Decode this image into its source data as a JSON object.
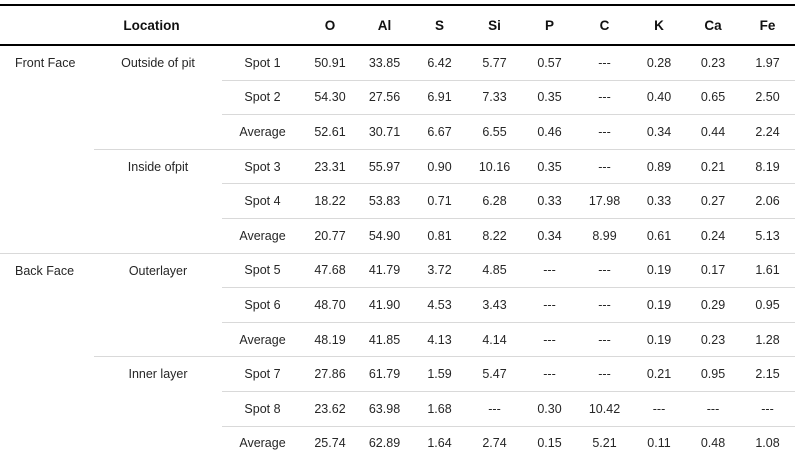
{
  "table": {
    "location_header": "Location",
    "element_columns": [
      "O",
      "Al",
      "S",
      "Si",
      "P",
      "C",
      "K",
      "Ca",
      "Fe"
    ],
    "rows": [
      {
        "face": "Front Face",
        "sub": "Outside of pit",
        "spot": "Spot 1",
        "divider": "none",
        "values": [
          "50.91",
          "33.85",
          "6.42",
          "5.77",
          "0.57",
          "---",
          "0.28",
          "0.23",
          "1.97"
        ]
      },
      {
        "face": "",
        "sub": "",
        "spot": "Spot 2",
        "divider": "spot",
        "values": [
          "54.30",
          "27.56",
          "6.91",
          "7.33",
          "0.35",
          "---",
          "0.40",
          "0.65",
          "2.50"
        ]
      },
      {
        "face": "",
        "sub": "",
        "spot": "Average",
        "divider": "spot",
        "values": [
          "52.61",
          "30.71",
          "6.67",
          "6.55",
          "0.46",
          "---",
          "0.34",
          "0.44",
          "2.24"
        ]
      },
      {
        "face": "",
        "sub": "Inside ofpit",
        "spot": "Spot 3",
        "divider": "sub",
        "values": [
          "23.31",
          "55.97",
          "0.90",
          "10.16",
          "0.35",
          "---",
          "0.89",
          "0.21",
          "8.19"
        ]
      },
      {
        "face": "",
        "sub": "",
        "spot": "Spot 4",
        "divider": "spot",
        "values": [
          "18.22",
          "53.83",
          "0.71",
          "6.28",
          "0.33",
          "17.98",
          "0.33",
          "0.27",
          "2.06"
        ]
      },
      {
        "face": "",
        "sub": "",
        "spot": "Average",
        "divider": "spot",
        "values": [
          "20.77",
          "54.90",
          "0.81",
          "8.22",
          "0.34",
          "8.99",
          "0.61",
          "0.24",
          "5.13"
        ]
      },
      {
        "face": "Back Face",
        "sub": "Outerlayer",
        "spot": "Spot 5",
        "divider": "full",
        "values": [
          "47.68",
          "41.79",
          "3.72",
          "4.85",
          "---",
          "---",
          "0.19",
          "0.17",
          "1.61"
        ]
      },
      {
        "face": "",
        "sub": "",
        "spot": "Spot 6",
        "divider": "spot",
        "values": [
          "48.70",
          "41.90",
          "4.53",
          "3.43",
          "---",
          "---",
          "0.19",
          "0.29",
          "0.95"
        ]
      },
      {
        "face": "",
        "sub": "",
        "spot": "Average",
        "divider": "spot",
        "values": [
          "48.19",
          "41.85",
          "4.13",
          "4.14",
          "---",
          "---",
          "0.19",
          "0.23",
          "1.28"
        ]
      },
      {
        "face": "",
        "sub": "Inner layer",
        "spot": "Spot 7",
        "divider": "sub",
        "values": [
          "27.86",
          "61.79",
          "1.59",
          "5.47",
          "---",
          "---",
          "0.21",
          "0.95",
          "2.15"
        ]
      },
      {
        "face": "",
        "sub": "",
        "spot": "Spot 8",
        "divider": "spot",
        "values": [
          "23.62",
          "63.98",
          "1.68",
          "---",
          "0.30",
          "10.42",
          "---",
          "---",
          "---"
        ]
      },
      {
        "face": "",
        "sub": "",
        "spot": "Average",
        "divider": "spot",
        "values": [
          "25.74",
          "62.89",
          "1.64",
          "2.74",
          "0.15",
          "5.21",
          "0.11",
          "0.48",
          "1.08"
        ]
      }
    ],
    "colors": {
      "heavy_border": "#000000",
      "light_border": "#d9d9d9",
      "text": "#262626",
      "background": "#ffffff"
    }
  }
}
